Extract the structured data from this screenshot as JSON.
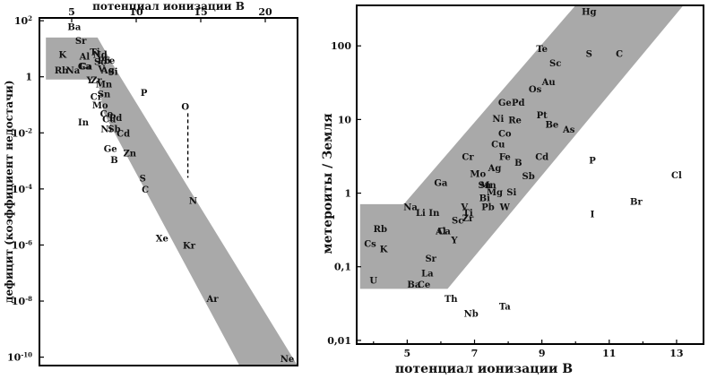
{
  "chart_data": [
    {
      "type": "scatter",
      "title": "",
      "xlabel": "потенциал ионизации  В",
      "ylabel": "дефицит (коэффициент недостачи)",
      "xlim": [
        2.5,
        22.5
      ],
      "ylim_log10": [
        -10.3,
        2.1
      ],
      "x_ticks": [
        {
          "value": 5,
          "label": "5"
        },
        {
          "value": 10,
          "label": "10"
        },
        {
          "value": 15,
          "label": "15"
        },
        {
          "value": 20,
          "label": "20"
        }
      ],
      "y_ticks": [
        {
          "exp": 2,
          "base": "10",
          "sup": "2"
        },
        {
          "exp": 0,
          "base": "1",
          "sup": ""
        },
        {
          "exp": -2,
          "base": "10",
          "sup": "-2"
        },
        {
          "exp": -4,
          "base": "10",
          "sup": "-4"
        },
        {
          "exp": -6,
          "base": "10",
          "sup": "-6"
        },
        {
          "exp": -8,
          "base": "10",
          "sup": "-8"
        },
        {
          "exp": -10,
          "base": "10",
          "sup": "-10"
        }
      ],
      "band": [
        [
          3.0,
          1.4
        ],
        [
          7.0,
          1.4
        ],
        [
          8.5,
          0.2
        ],
        [
          22.5,
          -10.5
        ],
        [
          18.0,
          -10.5
        ],
        [
          7.5,
          -1.3
        ],
        [
          7.0,
          -0.1
        ],
        [
          3.0,
          -0.1
        ]
      ],
      "points": [
        {
          "label": "Ba",
          "x": 5.2,
          "y": 1.75
        },
        {
          "label": "Sr",
          "x": 5.7,
          "y": 1.25
        },
        {
          "label": "K",
          "x": 4.3,
          "y": 0.75
        },
        {
          "label": "Al",
          "x": 6.0,
          "y": 0.7
        },
        {
          "label": "Ti",
          "x": 6.8,
          "y": 0.85
        },
        {
          "label": "Nd",
          "x": 7.2,
          "y": 0.75
        },
        {
          "label": "Fe",
          "x": 7.9,
          "y": 0.55
        },
        {
          "label": "Rb",
          "x": 4.2,
          "y": 0.2
        },
        {
          "label": "Na",
          "x": 5.1,
          "y": 0.2
        },
        {
          "label": "Ga",
          "x": 6.0,
          "y": 0.35
        },
        {
          "label": "Ca",
          "x": 6.1,
          "y": 0.35
        },
        {
          "label": "Sc",
          "x": 7.2,
          "y": 0.5
        },
        {
          "label": "Pb",
          "x": 7.5,
          "y": 0.55
        },
        {
          "label": "V",
          "x": 7.3,
          "y": 0.25
        },
        {
          "label": "Ag",
          "x": 7.8,
          "y": 0.2
        },
        {
          "label": "Si",
          "x": 8.2,
          "y": 0.15
        },
        {
          "label": "Y",
          "x": 6.4,
          "y": -0.15
        },
        {
          "label": "Zr",
          "x": 6.9,
          "y": -0.15
        },
        {
          "label": "Mn",
          "x": 7.5,
          "y": -0.3
        },
        {
          "label": "Sn",
          "x": 7.5,
          "y": -0.65
        },
        {
          "label": "Cr",
          "x": 6.9,
          "y": -0.75
        },
        {
          "label": "Mo",
          "x": 7.2,
          "y": -1.05
        },
        {
          "label": "Co",
          "x": 7.7,
          "y": -1.35
        },
        {
          "label": "Cu",
          "x": 7.9,
          "y": -1.55
        },
        {
          "label": "Pd",
          "x": 8.4,
          "y": -1.5
        },
        {
          "label": "In",
          "x": 5.9,
          "y": -1.65
        },
        {
          "label": "Ni",
          "x": 7.7,
          "y": -1.9
        },
        {
          "label": "Sb",
          "x": 8.3,
          "y": -1.9
        },
        {
          "label": "Cd",
          "x": 9.0,
          "y": -2.05
        },
        {
          "label": "P",
          "x": 10.6,
          "y": -0.6
        },
        {
          "label": "O",
          "x": 13.8,
          "y": -1.1
        },
        {
          "label": "Ge",
          "x": 8.0,
          "y": -2.6
        },
        {
          "label": "Zn",
          "x": 9.5,
          "y": -2.75
        },
        {
          "label": "B",
          "x": 8.3,
          "y": -3.0
        },
        {
          "label": "S",
          "x": 10.5,
          "y": -3.65
        },
        {
          "label": "C",
          "x": 10.7,
          "y": -4.05
        },
        {
          "label": "N",
          "x": 14.4,
          "y": -4.45
        },
        {
          "label": "Xe",
          "x": 12.0,
          "y": -5.8
        },
        {
          "label": "Kr",
          "x": 14.1,
          "y": -6.05
        },
        {
          "label": "Ar",
          "x": 15.9,
          "y": -7.95
        },
        {
          "label": "Ne",
          "x": 21.7,
          "y": -10.1
        }
      ],
      "annotation_line": {
        "x": 14.0,
        "y_from": -1.3,
        "y_to": -3.6
      }
    },
    {
      "type": "scatter",
      "title": "",
      "xlabel": "потенциал ионизации  В",
      "ylabel": "метероиты / Земля",
      "xlim": [
        3.5,
        13.8
      ],
      "ylim_log10": [
        -2.05,
        2.55
      ],
      "x_ticks": [
        {
          "value": 5,
          "label": "5"
        },
        {
          "value": 7,
          "label": "7"
        },
        {
          "value": 9,
          "label": "9"
        },
        {
          "value": 11,
          "label": "11"
        },
        {
          "value": 13,
          "label": "13"
        }
      ],
      "y_ticks": [
        {
          "exp": 2,
          "label": "100"
        },
        {
          "exp": 1,
          "label": "10"
        },
        {
          "exp": 0,
          "label": "1"
        },
        {
          "exp": -1,
          "label": "0,1"
        },
        {
          "exp": -2,
          "label": "0,01"
        }
      ],
      "band": [
        [
          3.6,
          -0.15
        ],
        [
          4.9,
          -0.15
        ],
        [
          10.0,
          2.55
        ],
        [
          13.2,
          2.55
        ],
        [
          6.2,
          -1.3
        ],
        [
          3.6,
          -1.3
        ]
      ],
      "points": [
        {
          "label": "Hg",
          "x": 10.4,
          "y": 2.45
        },
        {
          "label": "Te",
          "x": 9.0,
          "y": 1.95
        },
        {
          "label": "S",
          "x": 10.4,
          "y": 1.88
        },
        {
          "label": "C",
          "x": 11.3,
          "y": 1.88
        },
        {
          "label": "Sc",
          "x": 9.4,
          "y": 1.75
        },
        {
          "label": "Au",
          "x": 9.2,
          "y": 1.5
        },
        {
          "label": "Os",
          "x": 8.8,
          "y": 1.4
        },
        {
          "label": "Ge",
          "x": 7.9,
          "y": 1.22
        },
        {
          "label": "Pd",
          "x": 8.3,
          "y": 1.22
        },
        {
          "label": "Pt",
          "x": 9.0,
          "y": 1.05
        },
        {
          "label": "Ni",
          "x": 7.7,
          "y": 1.0
        },
        {
          "label": "Re",
          "x": 8.2,
          "y": 0.98
        },
        {
          "label": "Be",
          "x": 9.3,
          "y": 0.92
        },
        {
          "label": "As",
          "x": 9.8,
          "y": 0.85
        },
        {
          "label": "Co",
          "x": 7.9,
          "y": 0.8
        },
        {
          "label": "Cu",
          "x": 7.7,
          "y": 0.65
        },
        {
          "label": "Cr",
          "x": 6.8,
          "y": 0.48
        },
        {
          "label": "Fe",
          "x": 7.9,
          "y": 0.48
        },
        {
          "label": "Cd",
          "x": 9.0,
          "y": 0.48
        },
        {
          "label": "Ag",
          "x": 7.6,
          "y": 0.33
        },
        {
          "label": "B",
          "x": 8.3,
          "y": 0.4
        },
        {
          "label": "Mo",
          "x": 7.1,
          "y": 0.25
        },
        {
          "label": "Sb",
          "x": 8.6,
          "y": 0.22
        },
        {
          "label": "Ga",
          "x": 6.0,
          "y": 0.13
        },
        {
          "label": "Sn",
          "x": 7.3,
          "y": 0.1
        },
        {
          "label": "Mn",
          "x": 7.4,
          "y": 0.1
        },
        {
          "label": "Mg",
          "x": 7.6,
          "y": 0.0
        },
        {
          "label": "Si",
          "x": 8.1,
          "y": 0.0
        },
        {
          "label": "Bi",
          "x": 7.3,
          "y": -0.08
        },
        {
          "label": "V",
          "x": 6.7,
          "y": -0.2
        },
        {
          "label": "Pb",
          "x": 7.4,
          "y": -0.2
        },
        {
          "label": "W",
          "x": 7.9,
          "y": -0.2
        },
        {
          "label": "Na",
          "x": 5.1,
          "y": -0.2
        },
        {
          "label": "Li",
          "x": 5.4,
          "y": -0.28
        },
        {
          "label": "In",
          "x": 5.8,
          "y": -0.28
        },
        {
          "label": "Ti",
          "x": 6.8,
          "y": -0.28
        },
        {
          "label": "Zr",
          "x": 6.8,
          "y": -0.35
        },
        {
          "label": "Sc",
          "x": 6.5,
          "y": -0.38
        },
        {
          "label": "Rb",
          "x": 4.2,
          "y": -0.5
        },
        {
          "label": "Al",
          "x": 6.0,
          "y": -0.53
        },
        {
          "label": "Ca",
          "x": 6.1,
          "y": -0.53
        },
        {
          "label": "Y",
          "x": 6.4,
          "y": -0.65
        },
        {
          "label": "Cs",
          "x": 3.9,
          "y": -0.7
        },
        {
          "label": "K",
          "x": 4.3,
          "y": -0.77
        },
        {
          "label": "Sr",
          "x": 5.7,
          "y": -0.9
        },
        {
          "label": "La",
          "x": 5.6,
          "y": -1.1
        },
        {
          "label": "U",
          "x": 4.0,
          "y": -1.2
        },
        {
          "label": "Ba",
          "x": 5.2,
          "y": -1.25
        },
        {
          "label": "Ce",
          "x": 5.5,
          "y": -1.25
        },
        {
          "label": "Th",
          "x": 6.3,
          "y": -1.45
        },
        {
          "label": "Nb",
          "x": 6.9,
          "y": -1.65
        },
        {
          "label": "Ta",
          "x": 7.9,
          "y": -1.55
        },
        {
          "label": "P",
          "x": 10.5,
          "y": 0.43
        },
        {
          "label": "Cl",
          "x": 13.0,
          "y": 0.23
        },
        {
          "label": "Br",
          "x": 11.8,
          "y": -0.13
        },
        {
          "label": "I",
          "x": 10.5,
          "y": -0.3
        }
      ]
    }
  ]
}
